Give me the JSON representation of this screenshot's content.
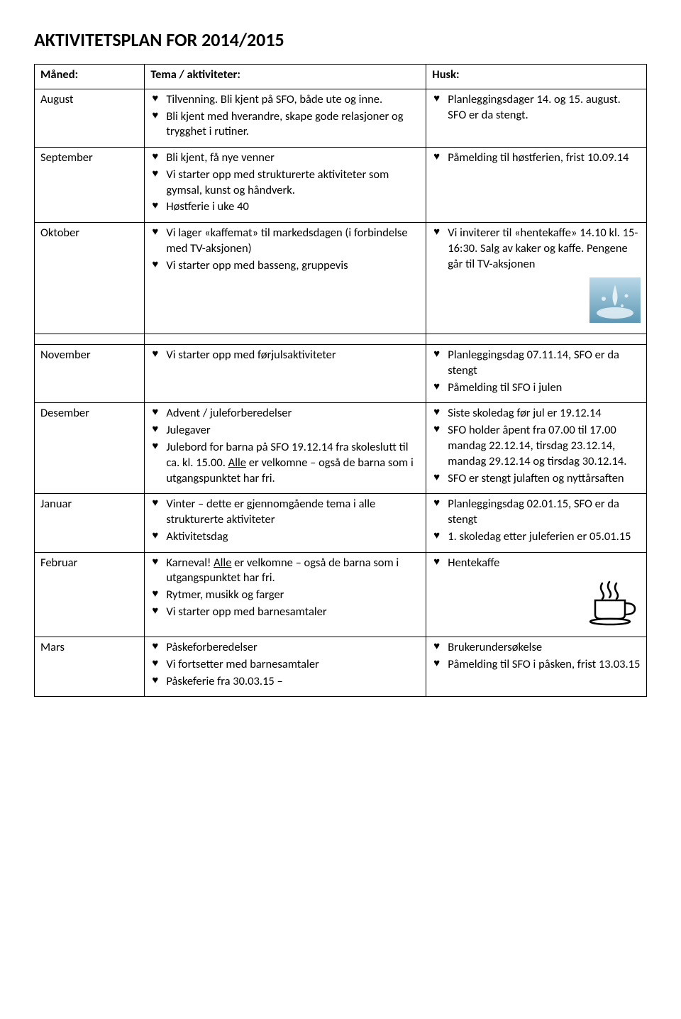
{
  "title": "AKTIVITETSPLAN FOR 2014/2015",
  "headers": {
    "c1": "Måned:",
    "c2": "Tema / aktiviteter:",
    "c3": "Husk:"
  },
  "rows": [
    {
      "month": "August",
      "acts": [
        "Tilvenning. Bli kjent på SFO, både ute og inne.",
        "Bli kjent med hverandre, skape gode relasjoner og trygghet i rutiner."
      ],
      "husk": [
        "Planleggingsdager 14. og 15. august. SFO er da stengt."
      ]
    },
    {
      "month": "September",
      "acts": [
        "Bli kjent, få nye venner",
        "Vi starter opp med strukturerte aktiviteter som gymsal, kunst og håndverk.",
        "Høstferie i uke 40"
      ],
      "husk": [
        "Påmelding til høstferien, frist 10.09.14"
      ]
    },
    {
      "month": "Oktober",
      "acts": [
        "Vi lager «kaffemat» til markedsdagen (i forbindelse med TV-aksjonen)",
        "Vi starter opp med basseng, gruppevis"
      ],
      "husk": [
        "Vi inviterer til «hentekaffe» 14.10 kl. 15-16:30. Salg av kaker og kaffe. Pengene går til TV-aksjonen"
      ],
      "icon": "water"
    },
    {
      "month": "November",
      "acts": [
        "Vi starter opp med førjulsaktiviteter"
      ],
      "husk": [
        "Planleggingsdag 07.11.14, SFO er da stengt",
        "Påmelding til SFO i julen"
      ]
    },
    {
      "month": "Desember",
      "acts_html": [
        "Advent / juleforberedelser",
        "Julegaver",
        "Julebord for barna på SFO 19.12.14 fra skoleslutt til ca. kl. 15.00. <span class=\"u\">Alle</span> er velkomne – også de barna som i utgangspunktet har fri."
      ],
      "husk": [
        "Siste skoledag før jul er 19.12.14",
        "SFO holder åpent fra 07.00 til 17.00 mandag 22.12.14, tirsdag 23.12.14, mandag 29.12.14 og tirsdag 30.12.14.",
        "SFO er stengt julaften og nyttårsaften"
      ]
    },
    {
      "month": "Januar",
      "acts": [
        "Vinter – dette er gjennomgående tema i alle strukturerte aktiviteter",
        "Aktivitetsdag"
      ],
      "husk": [
        "Planleggingsdag 02.01.15, SFO er da stengt",
        "1. skoledag etter juleferien er 05.01.15"
      ]
    },
    {
      "month": "Februar",
      "acts_html": [
        "Karneval! <span class=\"u\">Alle</span> er velkomne – også de barna som i utgangspunktet har fri.",
        "Rytmer, musikk og farger",
        "Vi starter opp med barnesamtaler"
      ],
      "husk": [
        "Hentekaffe"
      ],
      "icon": "coffee"
    },
    {
      "month": "Mars",
      "acts": [
        "Påskeforberedelser",
        "Vi fortsetter med barnesamtaler",
        "Påskeferie fra 30.03.15 –"
      ],
      "husk": [
        "Brukerundersøkelse",
        "Påmelding til SFO i påsken, frist 13.03.15"
      ]
    }
  ],
  "icons": {
    "water_colors": {
      "bg1": "#b9d8e8",
      "bg2": "#5d98b4",
      "splash": "#e8f2f7"
    },
    "coffee_color": "#000000"
  }
}
